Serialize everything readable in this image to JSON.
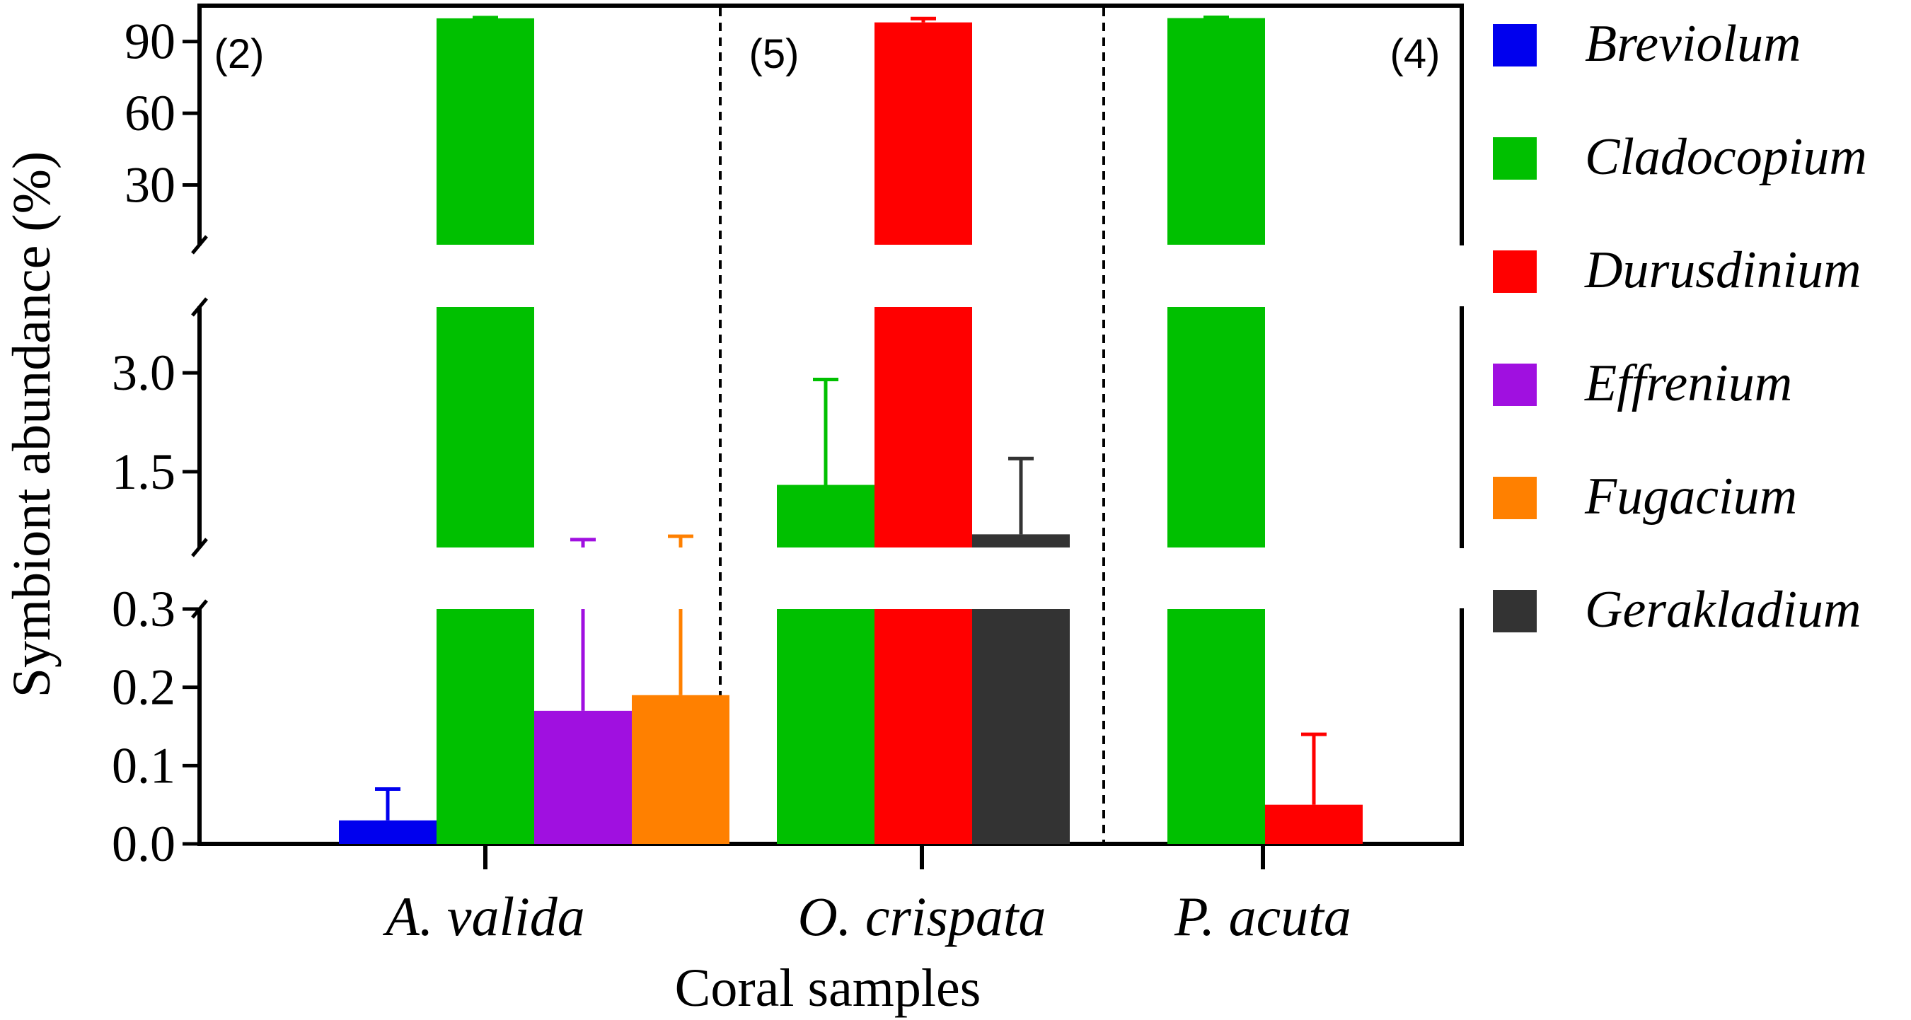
{
  "chart_data": {
    "type": "bar",
    "subtype": "grouped bar with broken y-axis",
    "xlabel": "Coral samples",
    "ylabel": "Symbiont abundance (%)",
    "categories": [
      "A. valida",
      "O. crispata",
      "P. acuta"
    ],
    "sample_counts": [
      "(2)",
      "(5)",
      "(4)"
    ],
    "series": [
      {
        "name": "Breviolum",
        "color": "#0000ee",
        "values": [
          0.03,
          null,
          null
        ],
        "errors": [
          0.04,
          null,
          null
        ]
      },
      {
        "name": "Cladocopium",
        "color": "#00c000",
        "values": [
          99.7,
          1.3,
          99.8
        ],
        "errors": [
          0.3,
          1.6,
          0.3
        ]
      },
      {
        "name": "Durusdinium",
        "color": "#ff0000",
        "values": [
          null,
          98.0,
          0.05
        ],
        "errors": [
          null,
          1.6,
          0.09
        ]
      },
      {
        "name": "Effrenium",
        "color": "#a010e0",
        "values": [
          0.17,
          null,
          null
        ],
        "errors": [
          0.3,
          null,
          null
        ]
      },
      {
        "name": "Fugacium",
        "color": "#ff8000",
        "values": [
          0.19,
          null,
          null
        ],
        "errors": [
          0.33,
          null,
          null
        ]
      },
      {
        "name": "Gerakladium",
        "color": "#333333",
        "values": [
          null,
          0.55,
          null
        ],
        "errors": [
          null,
          1.15,
          null
        ]
      }
    ],
    "y_segments": [
      {
        "ylim": [
          0,
          0.3
        ],
        "ticks": [
          "0.0",
          "0.1",
          "0.2",
          "0.3"
        ]
      },
      {
        "ylim": [
          0.35,
          4.0
        ],
        "ticks": [
          "1.5",
          "3.0"
        ]
      },
      {
        "ylim": [
          5,
          105
        ],
        "ticks": [
          "30",
          "60",
          "90"
        ]
      }
    ],
    "legend_position": "right"
  }
}
